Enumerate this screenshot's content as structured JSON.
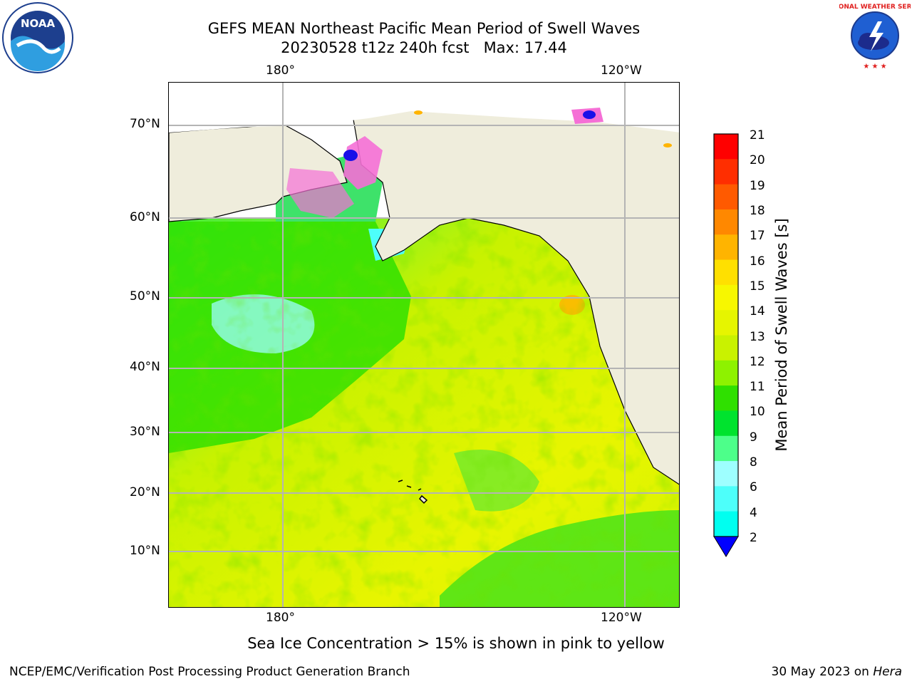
{
  "header": {
    "title_line1": "GEFS MEAN Northeast Pacific Mean Period of Swell Waves",
    "title_line2": "20230528 t12z 240h fcst   Max: 17.44"
  },
  "logos": {
    "left": "noaa-logo",
    "left_text": "NOAA",
    "right": "nws-logo",
    "right_text": "NATIONAL WEATHER SERVICE"
  },
  "map": {
    "top_lon_labels": [
      "180°",
      "120°W"
    ],
    "bottom_lon_labels": [
      "180°",
      "120°W"
    ],
    "lat_labels": [
      "70°N",
      "60°N",
      "50°N",
      "40°N",
      "30°N",
      "20°N",
      "10°N"
    ],
    "colors": {
      "land": "#efeddc",
      "coast": "#000000",
      "grid": "#b4b4b4",
      "ice_pink": "#f56fd6",
      "ice_blue": "#1a10e8"
    }
  },
  "colorbar": {
    "label": "Mean Period of Swell Waves [s]",
    "ticks": [
      "21",
      "20",
      "19",
      "18",
      "17",
      "16",
      "15",
      "14",
      "13",
      "12",
      "11",
      "10",
      "9",
      "8",
      "6",
      "4",
      "2"
    ],
    "colors": [
      "#ff0000",
      "#ff2e00",
      "#ff5a00",
      "#ff8800",
      "#ffb400",
      "#ffe000",
      "#f7f700",
      "#e6f500",
      "#c9f200",
      "#8ef200",
      "#2fe000",
      "#00e32e",
      "#4dff8a",
      "#9effff",
      "#4dfffa",
      "#00fff0",
      "#00e3ff",
      "#0077ff"
    ],
    "extend_color": "#0000ff"
  },
  "footer": {
    "note": "Sea Ice Concentration > 15% is shown in pink to yellow",
    "org": "NCEP/EMC/Verification Post Processing Product Generation Branch",
    "date": "30 May 2023 on ",
    "machine": "Hera"
  }
}
